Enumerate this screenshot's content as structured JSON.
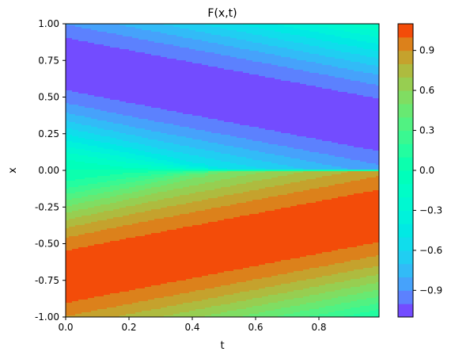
{
  "chart_data": {
    "type": "heatmap",
    "subtype": "filled-contour",
    "title": "F(x,t)",
    "xlabel": "t",
    "ylabel": "x",
    "xlim": [
      0,
      0.99
    ],
    "ylim": [
      -1.0,
      1.0
    ],
    "xticks": [
      "0.0",
      "0.2",
      "0.4",
      "0.6",
      "0.8"
    ],
    "xtick_values": [
      0.0,
      0.2,
      0.4,
      0.6,
      0.8
    ],
    "yticks": [
      "1.00",
      "0.75",
      "0.50",
      "0.25",
      "0.00",
      "-0.25",
      "-0.50",
      "-0.75",
      "-1.00"
    ],
    "ytick_values": [
      1.0,
      0.75,
      0.5,
      0.25,
      0.0,
      -0.25,
      -0.5,
      -0.75,
      -1.0
    ],
    "colorbar": {
      "colormap": "rainbow",
      "range": [
        -1.1,
        1.1
      ],
      "levels": 22,
      "ticks": [
        "0.9",
        "0.6",
        "0.3",
        "0.0",
        "−0.3",
        "−0.6",
        "−0.9"
      ],
      "tick_values": [
        0.9,
        0.6,
        0.3,
        0.0,
        -0.3,
        -0.6,
        -0.9
      ]
    },
    "grid": false
  }
}
